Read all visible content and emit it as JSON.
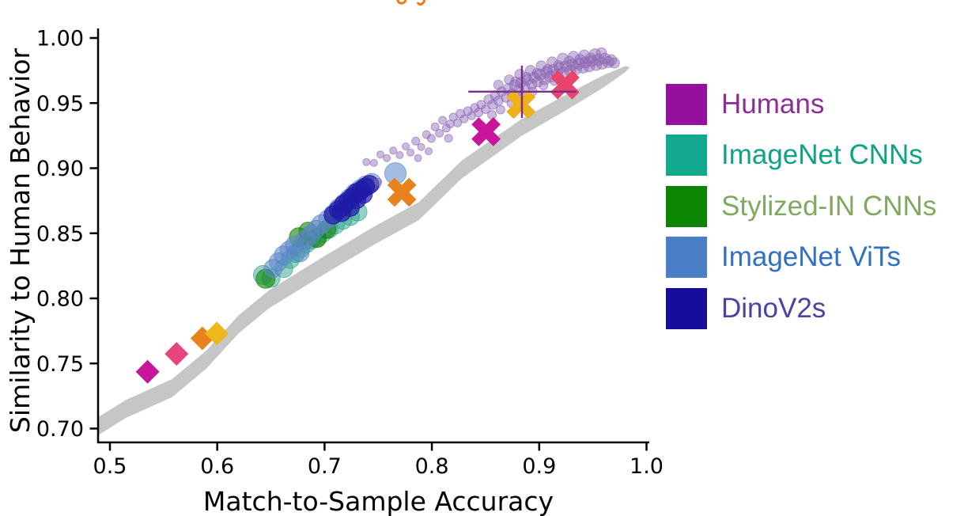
{
  "figure": {
    "background": "#ffffff",
    "title_fragment": {
      "note": "cropped descenders of an orange italic title at top edge",
      "color": "#F07818"
    }
  },
  "chart_data": {
    "type": "scatter",
    "title": "",
    "xlabel": "Match-to-Sample Accuracy",
    "ylabel": "Similarity to Human Behavior",
    "xlim": [
      0.5,
      1.0
    ],
    "ylim": [
      0.7,
      1.0
    ],
    "xticks": [
      0.5,
      0.6,
      0.7,
      0.8,
      0.9,
      1.0
    ],
    "xtick_labels": [
      "0.5",
      "0.6",
      "0.7",
      "0.8",
      "0.9",
      "1.0"
    ],
    "yticks": [
      0.7,
      0.75,
      0.8,
      0.85,
      0.9,
      0.95,
      1.0
    ],
    "ytick_labels": [
      "0.70",
      "0.75",
      "0.80",
      "0.85",
      "0.90",
      "0.95",
      "1.00"
    ],
    "grid": false,
    "legend_position": "right",
    "noise_ceiling_band": {
      "color": "#C6C6C6",
      "top": [
        [
          0.47,
          0.699,
          0.0138
        ],
        [
          0.515,
          0.722,
          0.0138
        ],
        [
          0.558,
          0.738,
          0.0138
        ],
        [
          0.59,
          0.76,
          0.0138
        ],
        [
          0.62,
          0.787,
          0.0138
        ],
        [
          0.648,
          0.806,
          0.0138
        ],
        [
          0.7,
          0.8325,
          0.0138
        ],
        [
          0.746,
          0.855,
          0.0138
        ],
        [
          0.788,
          0.874,
          0.0138
        ],
        [
          0.828,
          0.906,
          0.0138
        ],
        [
          0.884,
          0.938,
          0.013
        ],
        [
          0.924,
          0.956,
          0.012
        ],
        [
          0.96,
          0.9715,
          0.0095
        ],
        [
          0.9805,
          0.9785,
          0.0045
        ],
        [
          0.9845,
          0.9775,
          0.0
        ]
      ]
    },
    "series": [
      {
        "name": "ImageNet CNNs",
        "marker": "circle",
        "color": "#2EA38B",
        "opacity": 0.5,
        "points": [
          [
            0.6426,
            0.818,
            12
          ],
          [
            0.65,
            0.8155,
            11.5
          ],
          [
            0.662,
            0.823,
            11.5
          ],
          [
            0.668,
            0.83,
            11.5
          ],
          [
            0.673,
            0.8345,
            11.5
          ],
          [
            0.678,
            0.8385,
            11.5
          ],
          [
            0.683,
            0.842,
            11.5
          ],
          [
            0.688,
            0.845,
            11.5
          ],
          [
            0.693,
            0.847,
            11.5
          ],
          [
            0.698,
            0.85,
            11.5
          ],
          [
            0.704,
            0.853,
            11.5
          ],
          [
            0.71,
            0.8565,
            11.5
          ],
          [
            0.717,
            0.86,
            11.5
          ],
          [
            0.724,
            0.863,
            11.5
          ],
          [
            0.731,
            0.8665,
            11.5
          ]
        ]
      },
      {
        "name": "Stylized-IN CNNs",
        "marker": "circle",
        "color": "#128603",
        "opacity": 0.6,
        "points": [
          [
            0.645,
            0.815,
            12
          ],
          [
            0.676,
            0.847,
            12
          ],
          [
            0.6845,
            0.8515,
            11.5
          ],
          [
            0.693,
            0.846,
            11.5
          ],
          [
            0.702,
            0.853,
            11.5
          ]
        ]
      },
      {
        "name": "ImageNet ViTs",
        "marker": "circle",
        "color": "#5B86C8",
        "opacity": 0.55,
        "points": [
          [
            0.652,
            0.823,
            11.5
          ],
          [
            0.657,
            0.828,
            11.5
          ],
          [
            0.662,
            0.833,
            12
          ],
          [
            0.667,
            0.837,
            11.5
          ],
          [
            0.672,
            0.841,
            11.5
          ],
          [
            0.677,
            0.835,
            11.5
          ],
          [
            0.682,
            0.845,
            12
          ],
          [
            0.687,
            0.849,
            11.5
          ],
          [
            0.692,
            0.853,
            11.5
          ],
          [
            0.697,
            0.857,
            12
          ],
          [
            0.703,
            0.861,
            11.5
          ],
          [
            0.708,
            0.865,
            11.5
          ],
          [
            0.713,
            0.869,
            12
          ],
          [
            0.718,
            0.873,
            11.5
          ],
          [
            0.723,
            0.877,
            11.5
          ],
          [
            0.728,
            0.881,
            11.5
          ],
          [
            0.733,
            0.884,
            11.5
          ],
          [
            0.738,
            0.887,
            11.5
          ],
          [
            0.744,
            0.889,
            11.5
          ],
          [
            0.766,
            0.896,
            13.5
          ]
        ]
      },
      {
        "name": "DinoV2s",
        "marker": "circle",
        "color": "#2019A6",
        "opacity": 0.7,
        "points": [
          [
            0.708,
            0.864,
            11.5
          ],
          [
            0.713,
            0.868,
            11.5
          ],
          [
            0.716,
            0.866,
            11.5
          ],
          [
            0.718,
            0.872,
            12
          ],
          [
            0.722,
            0.875,
            11.5
          ],
          [
            0.724,
            0.87,
            11.5
          ],
          [
            0.726,
            0.878,
            11.5
          ],
          [
            0.73,
            0.881,
            12
          ],
          [
            0.73,
            0.876,
            11.5
          ],
          [
            0.734,
            0.883,
            11.5
          ],
          [
            0.736,
            0.88,
            11.5
          ],
          [
            0.738,
            0.8855,
            11.5
          ],
          [
            0.742,
            0.8875,
            11.5
          ]
        ]
      },
      {
        "name": "Humans",
        "marker": "circle",
        "color": "#8B66B4",
        "opacity": 0.45,
        "points": [
          [
            0.739,
            0.9047,
            4.5
          ],
          [
            0.746,
            0.904,
            4.5
          ],
          [
            0.75,
            0.8895,
            4.5
          ],
          [
            0.752,
            0.9105,
            4.5
          ],
          [
            0.758,
            0.9078,
            4.5
          ],
          [
            0.764,
            0.9135,
            4.5
          ],
          [
            0.77,
            0.91,
            4.5
          ],
          [
            0.7757,
            0.9167,
            4.5
          ],
          [
            0.78,
            0.912,
            4.5
          ],
          [
            0.785,
            0.9208,
            5
          ],
          [
            0.787,
            0.9078,
            4.5
          ],
          [
            0.79,
            0.9163,
            4.5
          ],
          [
            0.795,
            0.9258,
            5
          ],
          [
            0.797,
            0.913,
            4.5
          ],
          [
            0.7995,
            0.9228,
            5
          ],
          [
            0.803,
            0.9318,
            5
          ],
          [
            0.807,
            0.9268,
            5
          ],
          [
            0.81,
            0.9368,
            5
          ],
          [
            0.8135,
            0.9308,
            5
          ],
          [
            0.8155,
            0.923,
            5
          ],
          [
            0.817,
            0.934,
            5
          ],
          [
            0.82,
            0.9393,
            5
          ],
          [
            0.824,
            0.9348,
            5
          ],
          [
            0.8265,
            0.9418,
            5.5
          ],
          [
            0.83,
            0.9378,
            5
          ],
          [
            0.8335,
            0.9438,
            5.5
          ],
          [
            0.837,
            0.9403,
            5
          ],
          [
            0.84,
            0.9463,
            5.5
          ],
          [
            0.8435,
            0.9428,
            5.5
          ],
          [
            0.846,
            0.933,
            5
          ],
          [
            0.846,
            0.9488,
            5.5
          ],
          [
            0.85,
            0.9453,
            5.5
          ],
          [
            0.853,
            0.9528,
            6
          ],
          [
            0.856,
            0.941,
            5.5
          ],
          [
            0.8565,
            0.9488,
            6
          ],
          [
            0.859,
            0.9558,
            6
          ],
          [
            0.862,
            0.9518,
            6
          ],
          [
            0.862,
            0.964,
            6
          ],
          [
            0.864,
            0.945,
            5.5
          ],
          [
            0.865,
            0.9588,
            6
          ],
          [
            0.869,
            0.9543,
            6
          ],
          [
            0.871,
            0.9613,
            6
          ],
          [
            0.872,
            0.968,
            6
          ],
          [
            0.874,
            0.95,
            5.5
          ],
          [
            0.8745,
            0.9573,
            6
          ],
          [
            0.877,
            0.9638,
            6.5
          ],
          [
            0.878,
            0.9665,
            6
          ],
          [
            0.881,
            0.9598,
            6.5
          ],
          [
            0.883,
            0.9658,
            6.5
          ],
          [
            0.882,
            0.972,
            6.5
          ],
          [
            0.884,
            0.9555,
            5.5
          ],
          [
            0.8865,
            0.9623,
            6.5
          ],
          [
            0.888,
            0.97,
            6
          ],
          [
            0.889,
            0.9678,
            6.5
          ],
          [
            0.892,
            0.975,
            6.5
          ],
          [
            0.893,
            0.9643,
            6.5
          ],
          [
            0.894,
            0.959,
            5.5
          ],
          [
            0.895,
            0.9698,
            6.5
          ],
          [
            0.898,
            0.973,
            6
          ],
          [
            0.8985,
            0.9663,
            6.5
          ],
          [
            0.901,
            0.9718,
            7
          ],
          [
            0.902,
            0.9785,
            6.5
          ],
          [
            0.904,
            0.9635,
            5.5
          ],
          [
            0.905,
            0.9683,
            7
          ],
          [
            0.907,
            0.9738,
            7
          ],
          [
            0.908,
            0.976,
            6
          ],
          [
            0.9105,
            0.9703,
            7
          ],
          [
            0.912,
            0.9815,
            6.5
          ],
          [
            0.913,
            0.9753,
            7
          ],
          [
            0.914,
            0.967,
            5.5
          ],
          [
            0.917,
            0.9718,
            7
          ],
          [
            0.918,
            0.979,
            6
          ],
          [
            0.919,
            0.9768,
            7
          ],
          [
            0.922,
            0.984,
            7
          ],
          [
            0.9225,
            0.9733,
            7
          ],
          [
            0.925,
            0.9783,
            7
          ],
          [
            0.928,
            0.982,
            6.5
          ],
          [
            0.929,
            0.9748,
            7
          ],
          [
            0.931,
            0.9793,
            7
          ],
          [
            0.932,
            0.9855,
            7
          ],
          [
            0.9345,
            0.9763,
            7
          ],
          [
            0.937,
            0.9803,
            7
          ],
          [
            0.938,
            0.9835,
            6.5
          ],
          [
            0.941,
            0.9773,
            7
          ],
          [
            0.942,
            0.9865,
            7
          ],
          [
            0.943,
            0.9813,
            7
          ],
          [
            0.9465,
            0.9783,
            7
          ],
          [
            0.948,
            0.9845,
            6.5
          ],
          [
            0.949,
            0.9823,
            7
          ],
          [
            0.952,
            0.9875,
            7
          ],
          [
            0.953,
            0.9793,
            7
          ],
          [
            0.955,
            0.9833,
            7
          ],
          [
            0.958,
            0.9885,
            6.5
          ],
          [
            0.9585,
            0.9803,
            7
          ],
          [
            0.961,
            0.984,
            7
          ],
          [
            0.9645,
            0.9815,
            7
          ],
          [
            0.967,
            0.983,
            7
          ],
          [
            0.97,
            0.9808,
            6.5
          ]
        ]
      }
    ],
    "highlight_markers": {
      "diamonds": [
        {
          "x": 0.5351,
          "y": 0.7436,
          "color": "#C9159C"
        },
        {
          "x": 0.5621,
          "y": 0.7574,
          "color": "#E8457E"
        },
        {
          "x": 0.5861,
          "y": 0.7693,
          "color": "#E8821E"
        },
        {
          "x": 0.5996,
          "y": 0.773,
          "color": "#EEB71A"
        }
      ],
      "crosses": [
        {
          "x": 0.772,
          "y": 0.8815,
          "color": "#E8821E"
        },
        {
          "x": 0.8505,
          "y": 0.928,
          "color": "#C9159C"
        },
        {
          "x": 0.883,
          "y": 0.949,
          "color": "#EEB11A"
        },
        {
          "x": 0.924,
          "y": 0.964,
          "color": "#E94469"
        }
      ]
    },
    "human_mean_errorbar": {
      "x": 0.8839,
      "y": 0.9588,
      "x_range": [
        0.834,
        0.9347
      ],
      "y_range": [
        0.9386,
        0.9787
      ],
      "color": "#7A2D8C"
    }
  },
  "legend": {
    "items": [
      {
        "label": "Humans",
        "swatch_color": "#95119D",
        "text_color": "#8F2D96"
      },
      {
        "label": "ImageNet CNNs",
        "swatch_color": "#12A88E",
        "text_color": "#0FA385"
      },
      {
        "label": "Stylized-IN CNNs",
        "swatch_color": "#0C8502",
        "text_color": "#7FA95F"
      },
      {
        "label": "ImageNet ViTs",
        "swatch_color": "#4A7EC6",
        "text_color": "#3071C1"
      },
      {
        "label": "DinoV2s",
        "swatch_color": "#170D9C",
        "text_color": "#4843A5"
      }
    ]
  }
}
